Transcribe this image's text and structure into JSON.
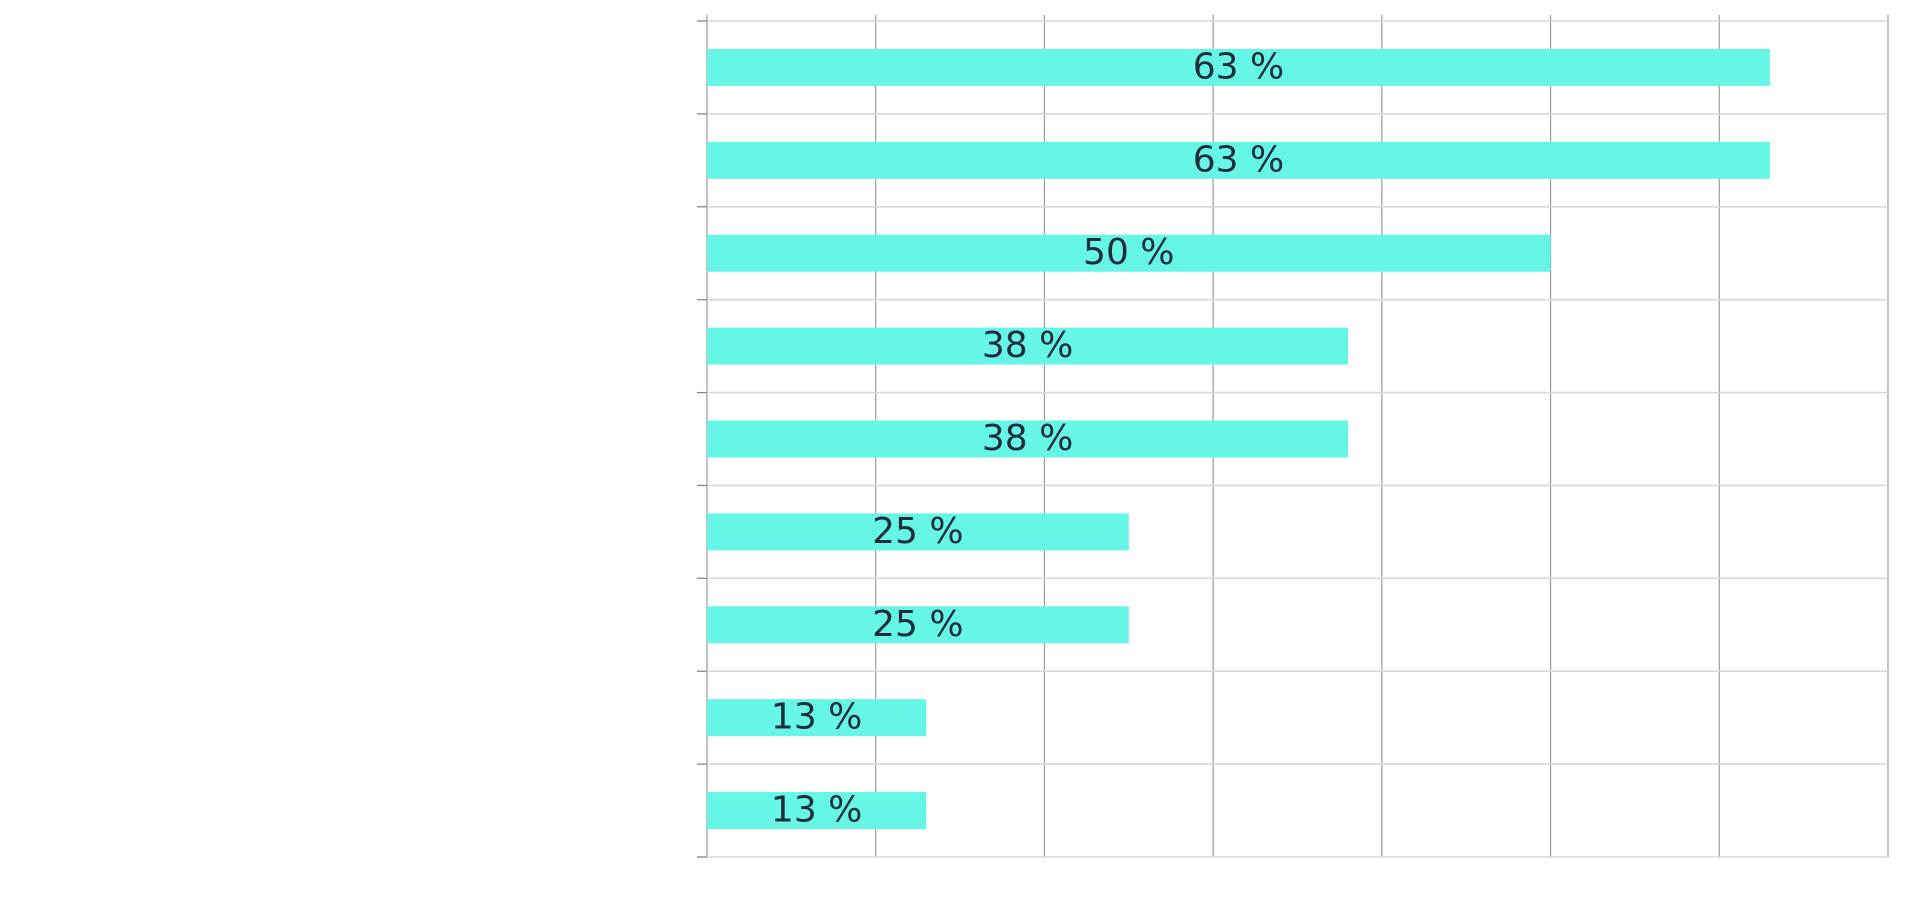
{
  "chart_data": {
    "type": "bar",
    "orientation": "horizontal",
    "categories": [
      "",
      "",
      "",
      "",
      "",
      "",
      "",
      "",
      ""
    ],
    "values": [
      63,
      63,
      50,
      38,
      38,
      25,
      25,
      13,
      13
    ],
    "data_labels": [
      "63 %",
      "63 %",
      "50 %",
      "38 %",
      "38 %",
      "25 %",
      "25 %",
      "13 %",
      "13 %"
    ],
    "xlim": [
      0,
      70
    ],
    "grid": true,
    "legend": "none",
    "bar_color": "#66f6e6"
  }
}
